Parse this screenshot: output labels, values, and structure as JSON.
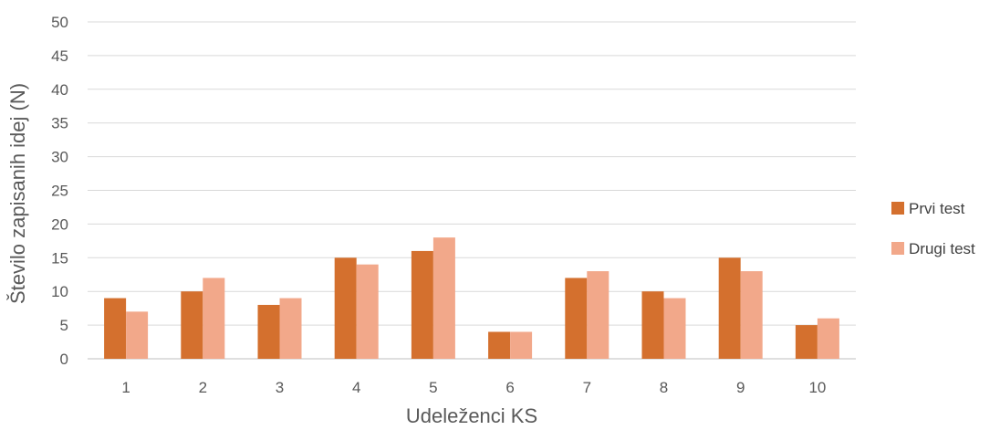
{
  "chart_data": {
    "type": "bar",
    "title": "",
    "xlabel": "Udeleženci KS",
    "ylabel": "Število zapisanih idej (N)",
    "categories": [
      "1",
      "2",
      "3",
      "4",
      "5",
      "6",
      "7",
      "8",
      "9",
      "10"
    ],
    "y_ticks": [
      "0",
      "5",
      "10",
      "15",
      "20",
      "25",
      "30",
      "35",
      "40",
      "45",
      "50"
    ],
    "ylim": [
      0,
      50
    ],
    "grid": true,
    "legend_position": "right",
    "series": [
      {
        "name": "Prvi test",
        "color": "#D4702E",
        "values": [
          9,
          10,
          8,
          15,
          16,
          4,
          12,
          10,
          15,
          5
        ]
      },
      {
        "name": "Drugi test",
        "color": "#F2A88A",
        "values": [
          7,
          12,
          9,
          14,
          18,
          4,
          13,
          9,
          13,
          6
        ]
      }
    ]
  }
}
